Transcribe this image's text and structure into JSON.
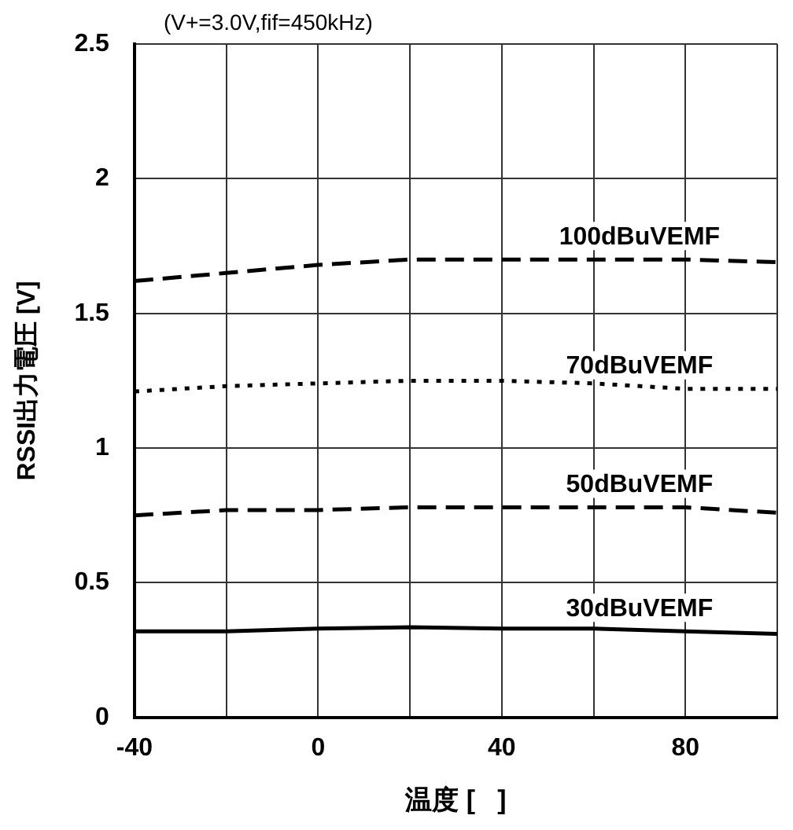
{
  "chart_data": {
    "type": "line",
    "subtitle": "(V+=3.0V,fif=450kHz)",
    "xlabel": "温度 [   ]",
    "ylabel": "RSSI出力電圧 [V]",
    "x": [
      -40,
      -20,
      0,
      20,
      40,
      60,
      80,
      100
    ],
    "xlim": [
      -40,
      100
    ],
    "xticks": [
      -40,
      {
        "value": -20,
        "label": null
      },
      0,
      {
        "value": 20,
        "label": null
      },
      40,
      {
        "value": 60,
        "label": null
      },
      80,
      {
        "value": 100,
        "label": null
      }
    ],
    "ylim": [
      0,
      2.5
    ],
    "yticks": [
      0,
      0.5,
      1,
      1.5,
      2,
      2.5
    ],
    "grid": true,
    "legend": false,
    "marker": "none",
    "series": [
      {
        "name": "100dBuVEMF",
        "color": "#000000",
        "line_style": "dashed",
        "values": [
          1.62,
          1.65,
          1.68,
          1.7,
          1.7,
          1.7,
          1.7,
          1.69
        ]
      },
      {
        "name": "70dBuVEMF",
        "color": "#000000",
        "line_style": "dotted",
        "values": [
          1.21,
          1.23,
          1.24,
          1.25,
          1.25,
          1.24,
          1.22,
          1.22
        ]
      },
      {
        "name": "50dBuVEMF",
        "color": "#000000",
        "line_style": "dashed",
        "values": [
          0.75,
          0.77,
          0.77,
          0.78,
          0.78,
          0.78,
          0.78,
          0.76
        ]
      },
      {
        "name": "30dBuVEMF",
        "color": "#000000",
        "line_style": "solid",
        "values": [
          0.32,
          0.32,
          0.33,
          0.335,
          0.33,
          0.33,
          0.32,
          0.31
        ]
      }
    ]
  }
}
